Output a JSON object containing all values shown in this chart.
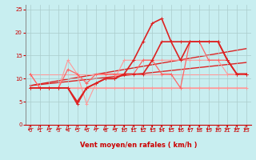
{
  "bg_color": "#c8eef0",
  "grid_color": "#aacccc",
  "xlabel": "Vent moyen/en rafales ( km/h )",
  "xlim": [
    -0.5,
    23.5
  ],
  "ylim": [
    0,
    26
  ],
  "yticks": [
    0,
    5,
    10,
    15,
    20,
    25
  ],
  "xticks": [
    0,
    1,
    2,
    3,
    4,
    5,
    6,
    7,
    8,
    9,
    10,
    11,
    12,
    13,
    14,
    15,
    16,
    17,
    18,
    19,
    20,
    21,
    22,
    23
  ],
  "series": [
    {
      "x": [
        0,
        1,
        2,
        3,
        4,
        5,
        6,
        7,
        8,
        9,
        10,
        11,
        12,
        13,
        14,
        15,
        16,
        17,
        18,
        19,
        20,
        21,
        22,
        23
      ],
      "y": [
        11,
        8,
        8,
        8,
        8,
        8,
        8,
        8,
        8,
        8,
        8,
        8,
        8,
        8,
        8,
        8,
        8,
        8,
        8,
        8,
        8,
        8,
        8,
        8
      ],
      "color": "#ff9999",
      "lw": 0.8
    },
    {
      "x": [
        0,
        1,
        2,
        3,
        4,
        5,
        6,
        7,
        8,
        9,
        10,
        11,
        12,
        13,
        14,
        15,
        16,
        17,
        18,
        19,
        20,
        21,
        22,
        23
      ],
      "y": [
        8,
        8,
        8,
        8,
        14,
        11,
        4.5,
        9,
        10,
        10,
        14,
        14,
        14,
        14,
        14,
        14,
        14,
        14,
        14,
        14,
        14,
        11,
        11,
        11
      ],
      "color": "#ff9999",
      "lw": 0.8
    },
    {
      "x": [
        0,
        1,
        2,
        3,
        4,
        5,
        6,
        7,
        8,
        9,
        10,
        11,
        12,
        13,
        14,
        15,
        16,
        17,
        18,
        19,
        20,
        21,
        22,
        23
      ],
      "y": [
        11,
        8,
        8,
        8,
        12,
        11,
        9,
        11,
        11,
        11,
        11,
        11,
        14,
        14,
        11,
        11,
        8,
        18,
        18,
        14,
        14,
        14,
        11,
        11
      ],
      "color": "#ff6666",
      "lw": 0.9
    },
    {
      "x": [
        0,
        1,
        2,
        3,
        4,
        5,
        6,
        7,
        8,
        9,
        10,
        11,
        12,
        13,
        14,
        15,
        16,
        17,
        18,
        19,
        20,
        21,
        22,
        23
      ],
      "y": [
        8,
        8,
        8,
        8,
        8,
        5,
        8,
        9,
        10,
        10,
        11,
        11,
        11,
        14,
        18,
        18,
        14,
        18,
        18,
        18,
        18,
        14,
        11,
        11
      ],
      "color": "#dd2222",
      "lw": 1.2
    },
    {
      "x": [
        0,
        1,
        2,
        3,
        4,
        5,
        6,
        7,
        8,
        9,
        10,
        11,
        12,
        13,
        14,
        15,
        16,
        17,
        18,
        19,
        20,
        21,
        22,
        23
      ],
      "y": [
        8,
        8,
        8,
        8,
        8,
        4.5,
        8,
        9,
        10,
        10,
        11,
        14,
        18,
        22,
        23,
        18,
        18,
        18,
        18,
        18,
        18,
        14,
        11,
        11
      ],
      "color": "#dd2222",
      "lw": 1.2
    }
  ],
  "trend_lines": [
    {
      "x": [
        0,
        23
      ],
      "y": [
        8.5,
        13.5
      ],
      "color": "#dd2222",
      "lw": 1.0
    },
    {
      "x": [
        0,
        23
      ],
      "y": [
        8.5,
        16.5
      ],
      "color": "#dd2222",
      "lw": 1.0
    },
    {
      "x": [
        0,
        23
      ],
      "y": [
        11,
        11
      ],
      "color": "#ff9999",
      "lw": 0.8
    },
    {
      "x": [
        0,
        23
      ],
      "y": [
        8,
        8
      ],
      "color": "#ff9999",
      "lw": 0.8
    }
  ],
  "marker_style": "+",
  "marker_size": 2.5,
  "tick_fontsize": 5,
  "axis_label_fontsize": 6
}
